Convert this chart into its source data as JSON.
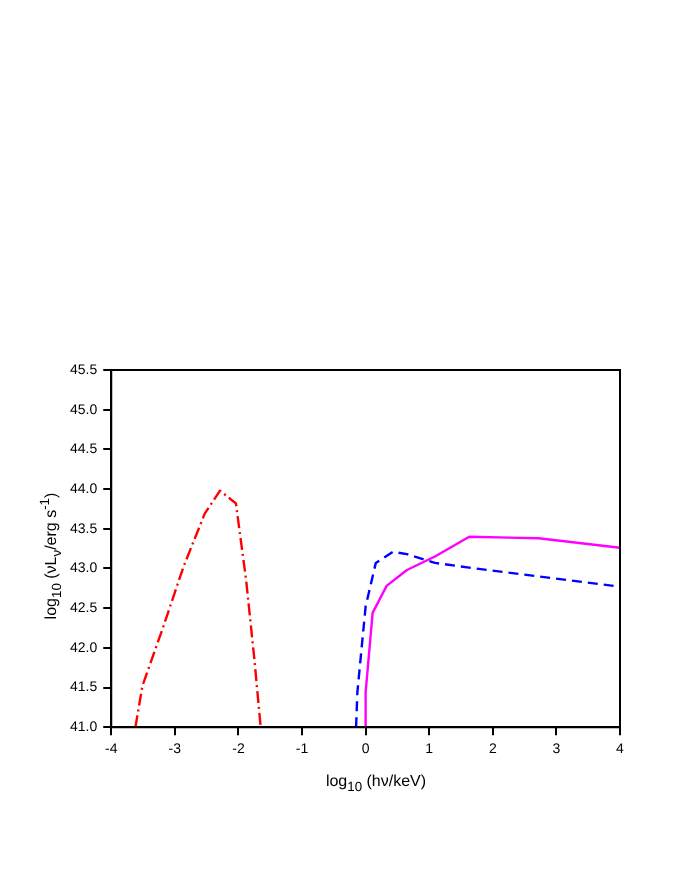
{
  "chart_data": {
    "type": "line",
    "xlabel": "log$_{10}$ (hν/keV)",
    "ylabel": "log$_{10}$ (νL$_{ν}$/erg s$^{-1}$)",
    "xlim": [
      -4,
      4
    ],
    "xticks": [
      -4,
      -3,
      -2,
      -1,
      0,
      1,
      2,
      3,
      4
    ],
    "ylim": [
      41.0,
      45.5
    ],
    "yticks": [
      {
        "value": 41,
        "label": "41.0"
      },
      {
        "value": 41.5,
        "label": "41.5"
      },
      {
        "value": 42,
        "label": "42.0"
      },
      {
        "value": 42.5,
        "label": "42.5"
      },
      {
        "value": 43,
        "label": "43.0"
      },
      {
        "value": 43.5,
        "label": "43.5"
      },
      {
        "value": 44,
        "label": "44.0"
      },
      {
        "value": 44.5,
        "label": "44.5"
      },
      {
        "value": 45,
        "label": "45.0"
      },
      {
        "value": 45.5,
        "label": "45.5"
      }
    ],
    "grid": false,
    "legend": false,
    "marker": "none",
    "series": [
      {
        "color": "#ff0000",
        "line_style": "dashdot",
        "x": [
          -3.62,
          -3.51,
          -3.18,
          -2.86,
          -2.53,
          -2.29,
          -2.04,
          -1.88,
          -1.75,
          -1.65
        ],
        "values": [
          41.0,
          41.52,
          42.27,
          43.03,
          43.69,
          43.98,
          43.82,
          42.86,
          41.86,
          41.0
        ]
      },
      {
        "color": "#0000ff",
        "line_style": "dashed",
        "x": [
          -0.15,
          -0.13,
          0.0,
          0.16,
          0.43,
          0.65,
          1.09,
          1.63,
          2.72,
          4.0
        ],
        "values": [
          41.0,
          41.44,
          42.52,
          43.07,
          43.21,
          43.18,
          43.07,
          43.01,
          42.9,
          42.77
        ]
      },
      {
        "color": "#ff00ff",
        "line_style": "solid",
        "x": [
          -0.02,
          0.0,
          0.11,
          0.33,
          0.65,
          1.09,
          1.63,
          2.72,
          4.0
        ],
        "values": [
          41.0,
          41.44,
          42.44,
          42.78,
          42.98,
          43.15,
          43.4,
          43.38,
          43.26
        ]
      }
    ]
  }
}
